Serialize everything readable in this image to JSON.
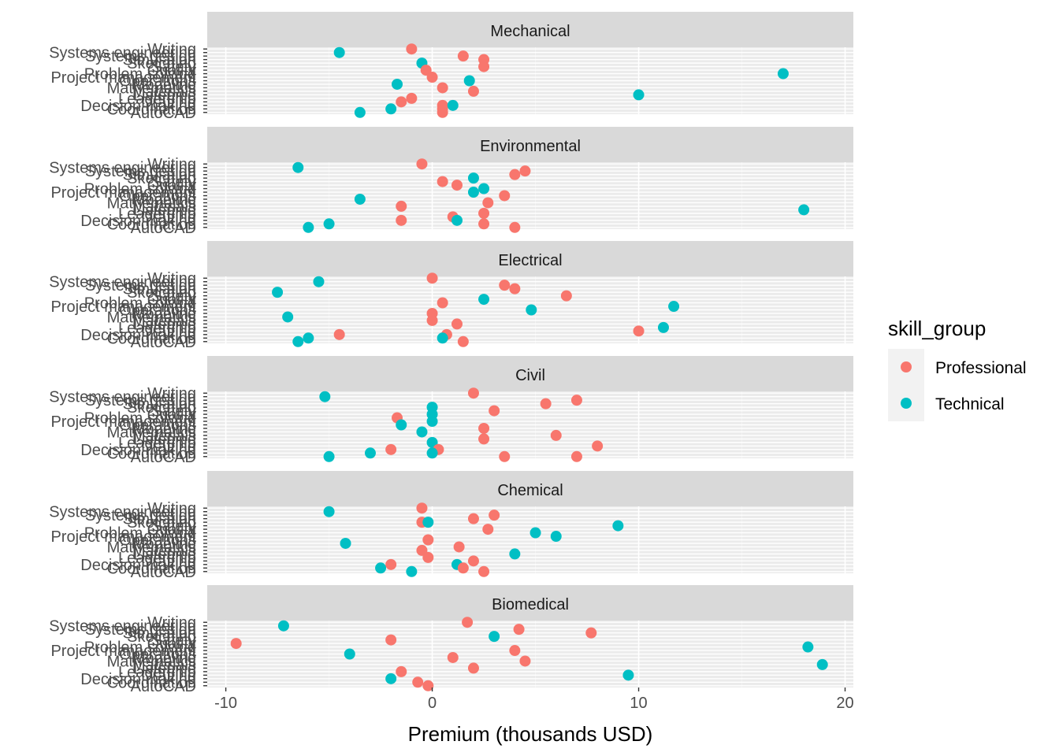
{
  "chart_data": {
    "type": "scatter",
    "xlabel": "Premium (thousands USD)",
    "ylabel": "",
    "xlim": [
      -10.9,
      20.4
    ],
    "xticks": [
      -10,
      0,
      10,
      20
    ],
    "xtick_labels": [
      "-10",
      "0",
      "10",
      "20"
    ],
    "grid": true,
    "legend": {
      "title": "skill_group",
      "position": "right",
      "entries": [
        {
          "name": "Professional",
          "color": "#F8766D"
        },
        {
          "name": "Technical",
          "color": "#00BFC4"
        }
      ]
    },
    "skills": [
      "Writing",
      "Systems engineering",
      "Systems design",
      "Simulation",
      "Sketching",
      "Safety",
      "Quality",
      "Problem solving",
      "Project management",
      "Operations",
      "Modeling",
      "Mathematics",
      "Materials",
      "Listening",
      "Leadership",
      "Drafting",
      "Decision making",
      "Coordination",
      "AutoCAD"
    ],
    "panels": [
      {
        "name": "Mechanical",
        "points": [
          {
            "skill": "Writing",
            "x": -1.0,
            "group": "Professional"
          },
          {
            "skill": "Systems engineering",
            "x": -4.5,
            "group": "Technical"
          },
          {
            "skill": "Systems design",
            "x": 1.5,
            "group": "Professional"
          },
          {
            "skill": "Simulation",
            "x": 2.5,
            "group": "Professional"
          },
          {
            "skill": "Sketching",
            "x": -0.5,
            "group": "Technical"
          },
          {
            "skill": "Safety",
            "x": 2.5,
            "group": "Professional"
          },
          {
            "skill": "Quality",
            "x": -0.3,
            "group": "Professional"
          },
          {
            "skill": "Problem solving",
            "x": 17.0,
            "group": "Technical"
          },
          {
            "skill": "Project management",
            "x": 0.0,
            "group": "Professional"
          },
          {
            "skill": "Operations",
            "x": 1.8,
            "group": "Technical"
          },
          {
            "skill": "Modeling",
            "x": -1.7,
            "group": "Technical"
          },
          {
            "skill": "Mathematics",
            "x": 0.5,
            "group": "Professional"
          },
          {
            "skill": "Materials",
            "x": 2.0,
            "group": "Professional"
          },
          {
            "skill": "Listening",
            "x": 10.0,
            "group": "Technical"
          },
          {
            "skill": "Leadership",
            "x": -1.0,
            "group": "Professional"
          },
          {
            "skill": "Drafting",
            "x": -1.5,
            "group": "Professional"
          },
          {
            "skill": "Decision making",
            "x": 0.5,
            "group": "Professional"
          },
          {
            "skill": "Decision making",
            "x": 1.0,
            "group": "Technical"
          },
          {
            "skill": "Coordination",
            "x": -2.0,
            "group": "Technical"
          },
          {
            "skill": "Coordination",
            "x": 0.5,
            "group": "Professional"
          },
          {
            "skill": "AutoCAD",
            "x": 0.5,
            "group": "Professional"
          },
          {
            "skill": "AutoCAD",
            "x": -3.5,
            "group": "Technical"
          }
        ]
      },
      {
        "name": "Environmental",
        "points": [
          {
            "skill": "Writing",
            "x": -0.5,
            "group": "Professional"
          },
          {
            "skill": "Systems engineering",
            "x": -6.5,
            "group": "Technical"
          },
          {
            "skill": "Systems design",
            "x": 4.5,
            "group": "Professional"
          },
          {
            "skill": "Simulation",
            "x": 4.0,
            "group": "Professional"
          },
          {
            "skill": "Sketching",
            "x": 2.0,
            "group": "Technical"
          },
          {
            "skill": "Safety",
            "x": 0.5,
            "group": "Professional"
          },
          {
            "skill": "Quality",
            "x": 1.2,
            "group": "Professional"
          },
          {
            "skill": "Problem solving",
            "x": 2.5,
            "group": "Technical"
          },
          {
            "skill": "Project management",
            "x": 2.0,
            "group": "Technical"
          },
          {
            "skill": "Operations",
            "x": 3.5,
            "group": "Professional"
          },
          {
            "skill": "Modeling",
            "x": -3.5,
            "group": "Technical"
          },
          {
            "skill": "Mathematics",
            "x": 2.7,
            "group": "Professional"
          },
          {
            "skill": "Materials",
            "x": -1.5,
            "group": "Professional"
          },
          {
            "skill": "Listening",
            "x": 18.0,
            "group": "Technical"
          },
          {
            "skill": "Leadership",
            "x": 2.5,
            "group": "Professional"
          },
          {
            "skill": "Drafting",
            "x": 1.0,
            "group": "Professional"
          },
          {
            "skill": "Decision making",
            "x": -1.5,
            "group": "Professional"
          },
          {
            "skill": "Decision making",
            "x": 1.2,
            "group": "Technical"
          },
          {
            "skill": "Coordination",
            "x": -5.0,
            "group": "Technical"
          },
          {
            "skill": "Coordination",
            "x": 2.5,
            "group": "Professional"
          },
          {
            "skill": "AutoCAD",
            "x": 4.0,
            "group": "Professional"
          },
          {
            "skill": "AutoCAD",
            "x": -6.0,
            "group": "Technical"
          }
        ]
      },
      {
        "name": "Electrical",
        "points": [
          {
            "skill": "Writing",
            "x": 0.0,
            "group": "Professional"
          },
          {
            "skill": "Systems engineering",
            "x": -5.5,
            "group": "Technical"
          },
          {
            "skill": "Systems design",
            "x": 3.5,
            "group": "Professional"
          },
          {
            "skill": "Simulation",
            "x": 4.0,
            "group": "Professional"
          },
          {
            "skill": "Sketching",
            "x": -7.5,
            "group": "Technical"
          },
          {
            "skill": "Safety",
            "x": 6.5,
            "group": "Professional"
          },
          {
            "skill": "Quality",
            "x": 2.5,
            "group": "Technical"
          },
          {
            "skill": "Problem solving",
            "x": 0.5,
            "group": "Professional"
          },
          {
            "skill": "Project management",
            "x": 11.7,
            "group": "Technical"
          },
          {
            "skill": "Operations",
            "x": 4.8,
            "group": "Technical"
          },
          {
            "skill": "Modeling",
            "x": 0.0,
            "group": "Professional"
          },
          {
            "skill": "Mathematics",
            "x": -7.0,
            "group": "Technical"
          },
          {
            "skill": "Materials",
            "x": 0.0,
            "group": "Professional"
          },
          {
            "skill": "Listening",
            "x": 1.2,
            "group": "Professional"
          },
          {
            "skill": "Leadership",
            "x": 11.2,
            "group": "Technical"
          },
          {
            "skill": "Drafting",
            "x": 10.0,
            "group": "Professional"
          },
          {
            "skill": "Decision making",
            "x": -4.5,
            "group": "Professional"
          },
          {
            "skill": "Decision making",
            "x": 0.7,
            "group": "Professional"
          },
          {
            "skill": "Coordination",
            "x": 0.5,
            "group": "Technical"
          },
          {
            "skill": "Coordination",
            "x": -6.0,
            "group": "Technical"
          },
          {
            "skill": "AutoCAD",
            "x": 1.5,
            "group": "Professional"
          },
          {
            "skill": "AutoCAD",
            "x": -6.5,
            "group": "Technical"
          }
        ]
      },
      {
        "name": "Civil",
        "points": [
          {
            "skill": "Writing",
            "x": 2.0,
            "group": "Professional"
          },
          {
            "skill": "Systems engineering",
            "x": -5.2,
            "group": "Technical"
          },
          {
            "skill": "Systems design",
            "x": 7.0,
            "group": "Professional"
          },
          {
            "skill": "Simulation",
            "x": 5.5,
            "group": "Professional"
          },
          {
            "skill": "Sketching",
            "x": 0.0,
            "group": "Technical"
          },
          {
            "skill": "Safety",
            "x": 3.0,
            "group": "Professional"
          },
          {
            "skill": "Quality",
            "x": 0.0,
            "group": "Technical"
          },
          {
            "skill": "Problem solving",
            "x": -1.7,
            "group": "Professional"
          },
          {
            "skill": "Project management",
            "x": 0.0,
            "group": "Technical"
          },
          {
            "skill": "Operations",
            "x": -1.5,
            "group": "Technical"
          },
          {
            "skill": "Modeling",
            "x": 2.5,
            "group": "Professional"
          },
          {
            "skill": "Mathematics",
            "x": -0.5,
            "group": "Technical"
          },
          {
            "skill": "Materials",
            "x": 6.0,
            "group": "Professional"
          },
          {
            "skill": "Listening",
            "x": 2.5,
            "group": "Professional"
          },
          {
            "skill": "Leadership",
            "x": 0.0,
            "group": "Technical"
          },
          {
            "skill": "Drafting",
            "x": 8.0,
            "group": "Professional"
          },
          {
            "skill": "Decision making",
            "x": 0.3,
            "group": "Professional"
          },
          {
            "skill": "Decision making",
            "x": -2.0,
            "group": "Professional"
          },
          {
            "skill": "Coordination",
            "x": 0.0,
            "group": "Technical"
          },
          {
            "skill": "Coordination",
            "x": -3.0,
            "group": "Technical"
          },
          {
            "skill": "AutoCAD",
            "x": 7.0,
            "group": "Professional"
          },
          {
            "skill": "AutoCAD",
            "x": 3.5,
            "group": "Professional"
          },
          {
            "skill": "AutoCAD",
            "x": -5.0,
            "group": "Technical"
          }
        ]
      },
      {
        "name": "Chemical",
        "points": [
          {
            "skill": "Writing",
            "x": -0.5,
            "group": "Professional"
          },
          {
            "skill": "Systems engineering",
            "x": -5.0,
            "group": "Technical"
          },
          {
            "skill": "Systems design",
            "x": 3.0,
            "group": "Professional"
          },
          {
            "skill": "Simulation",
            "x": 2.0,
            "group": "Professional"
          },
          {
            "skill": "Sketching",
            "x": -0.5,
            "group": "Professional"
          },
          {
            "skill": "Sketching",
            "x": -0.2,
            "group": "Technical"
          },
          {
            "skill": "Safety",
            "x": 9.0,
            "group": "Technical"
          },
          {
            "skill": "Quality",
            "x": 2.7,
            "group": "Professional"
          },
          {
            "skill": "Problem solving",
            "x": 5.0,
            "group": "Technical"
          },
          {
            "skill": "Project management",
            "x": 6.0,
            "group": "Technical"
          },
          {
            "skill": "Operations",
            "x": -0.2,
            "group": "Professional"
          },
          {
            "skill": "Modeling",
            "x": -4.2,
            "group": "Technical"
          },
          {
            "skill": "Mathematics",
            "x": 1.3,
            "group": "Professional"
          },
          {
            "skill": "Materials",
            "x": -0.5,
            "group": "Professional"
          },
          {
            "skill": "Listening",
            "x": 4.0,
            "group": "Technical"
          },
          {
            "skill": "Leadership",
            "x": -0.2,
            "group": "Professional"
          },
          {
            "skill": "Drafting",
            "x": 2.0,
            "group": "Professional"
          },
          {
            "skill": "Decision making",
            "x": -2.0,
            "group": "Professional"
          },
          {
            "skill": "Decision making",
            "x": 1.2,
            "group": "Technical"
          },
          {
            "skill": "Coordination",
            "x": -2.5,
            "group": "Technical"
          },
          {
            "skill": "Coordination",
            "x": 1.5,
            "group": "Professional"
          },
          {
            "skill": "AutoCAD",
            "x": 2.5,
            "group": "Professional"
          },
          {
            "skill": "AutoCAD",
            "x": -1.0,
            "group": "Technical"
          }
        ]
      },
      {
        "name": "Biomedical",
        "points": [
          {
            "skill": "Writing",
            "x": 1.7,
            "group": "Professional"
          },
          {
            "skill": "Systems engineering",
            "x": -7.2,
            "group": "Technical"
          },
          {
            "skill": "Systems design",
            "x": 4.2,
            "group": "Professional"
          },
          {
            "skill": "Simulation",
            "x": 7.7,
            "group": "Professional"
          },
          {
            "skill": "Sketching",
            "x": 3.0,
            "group": "Technical"
          },
          {
            "skill": "Safety",
            "x": -2.0,
            "group": "Professional"
          },
          {
            "skill": "Quality",
            "x": -9.5,
            "group": "Professional"
          },
          {
            "skill": "Problem solving",
            "x": 18.2,
            "group": "Technical"
          },
          {
            "skill": "Project management",
            "x": 4.0,
            "group": "Professional"
          },
          {
            "skill": "Operations",
            "x": -4.0,
            "group": "Technical"
          },
          {
            "skill": "Modeling",
            "x": 1.0,
            "group": "Professional"
          },
          {
            "skill": "Mathematics",
            "x": 4.5,
            "group": "Professional"
          },
          {
            "skill": "Materials",
            "x": 18.9,
            "group": "Technical"
          },
          {
            "skill": "Listening",
            "x": 2.0,
            "group": "Professional"
          },
          {
            "skill": "Leadership",
            "x": -1.5,
            "group": "Professional"
          },
          {
            "skill": "Drafting",
            "x": 9.5,
            "group": "Technical"
          },
          {
            "skill": "Decision making",
            "x": -2.0,
            "group": "Technical"
          },
          {
            "skill": "Coordination",
            "x": -0.7,
            "group": "Professional"
          },
          {
            "skill": "AutoCAD",
            "x": -0.2,
            "group": "Professional"
          }
        ]
      }
    ]
  }
}
